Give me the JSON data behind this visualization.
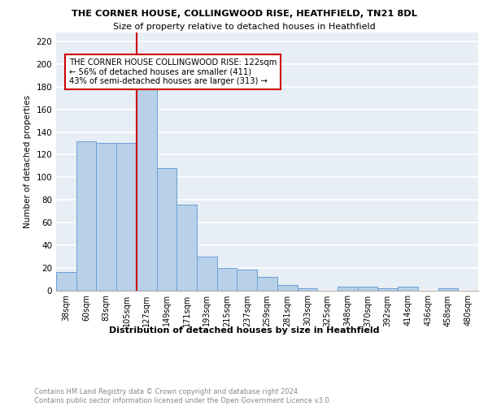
{
  "title1": "THE CORNER HOUSE, COLLINGWOOD RISE, HEATHFIELD, TN21 8DL",
  "title2": "Size of property relative to detached houses in Heathfield",
  "xlabel": "Distribution of detached houses by size in Heathfield",
  "ylabel": "Number of detached properties",
  "categories": [
    "38sqm",
    "60sqm",
    "83sqm",
    "105sqm",
    "127sqm",
    "149sqm",
    "171sqm",
    "193sqm",
    "215sqm",
    "237sqm",
    "259sqm",
    "281sqm",
    "303sqm",
    "325sqm",
    "348sqm",
    "370sqm",
    "392sqm",
    "414sqm",
    "436sqm",
    "458sqm",
    "480sqm"
  ],
  "values": [
    16,
    132,
    130,
    130,
    182,
    108,
    76,
    30,
    20,
    18,
    12,
    5,
    2,
    0,
    3,
    3,
    2,
    3,
    0,
    2,
    0
  ],
  "bar_color": "#b8d0e8",
  "bar_edge_color": "#6a9fd8",
  "bar_width": 1.0,
  "annotation_text": "THE CORNER HOUSE COLLINGWOOD RISE: 122sqm\n← 56% of detached houses are smaller (411)\n43% of semi-detached houses are larger (313) →",
  "annotation_box_color": "#ffffff",
  "annotation_box_edge_color": "#cc0000",
  "footer_text": "Contains HM Land Registry data © Crown copyright and database right 2024.\nContains public sector information licensed under the Open Government Licence v3.0.",
  "background_color": "#e8eef5",
  "ylim": [
    0,
    228
  ],
  "yticks": [
    0,
    20,
    40,
    60,
    80,
    100,
    120,
    140,
    160,
    180,
    200,
    220
  ],
  "red_line_x": 3.5
}
